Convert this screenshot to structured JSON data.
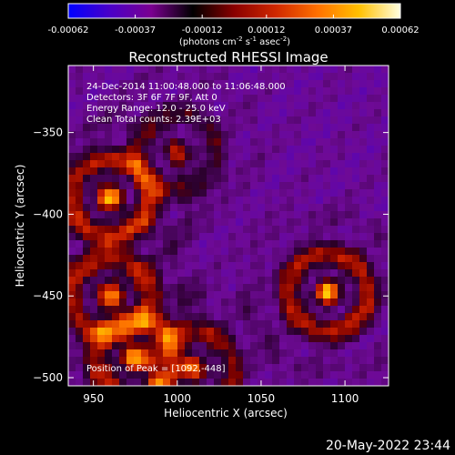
{
  "colorbar": {
    "tick_labels": [
      "-0.00062",
      "-0.00037",
      "-0.00012",
      "0.00012",
      "0.00037",
      "0.00062"
    ],
    "tick_values": [
      -0.00062,
      -0.00037,
      -0.00012,
      0.00012,
      0.00037,
      0.00062
    ],
    "range": [
      -0.00062,
      0.00062
    ],
    "unit_parts": {
      "pre": "(photons cm",
      "exp1": "-2",
      "mid1": " s",
      "exp2": "-1",
      "mid2": " asec",
      "exp3": "-2",
      "post": ")"
    },
    "colors": [
      "#0000ff",
      "#4a00c8",
      "#7a0090",
      "#000000",
      "#8a0000",
      "#d02800",
      "#ff7000",
      "#ffc000",
      "#ffffe0"
    ]
  },
  "chart_data": {
    "type": "heatmap",
    "title": "Reconstructed RHESSI Image",
    "xlabel": "Heliocentric X (arcsec)",
    "ylabel": "Heliocentric Y (arcsec)",
    "xlim": [
      935,
      1126
    ],
    "ylim": [
      -505,
      -309
    ],
    "x_ticks": [
      950,
      1000,
      1050,
      1100
    ],
    "x_tick_labels": [
      "950",
      "1000",
      "1050",
      "1100"
    ],
    "y_ticks": [
      -500,
      -450,
      -400,
      -350
    ],
    "y_tick_labels": [
      "−500",
      "−450",
      "−400",
      "−350"
    ],
    "annotations": [
      "24-Dec-2014 11:00:48.000 to 11:06:48.000",
      "Detectors: 3F 6F 7F 9F, Att 0",
      "Energy Range: 12.0 - 25.0 keV",
      "Clean    Total counts: 2.39E+03"
    ],
    "peak_label": "Position of Peak = [1092,-448]",
    "peak": [
      1092,
      -448
    ],
    "sources": [
      {
        "x": 960,
        "y": -390,
        "strength": 1.0
      },
      {
        "x": 960,
        "y": -450,
        "strength": 0.85
      },
      {
        "x": 975,
        "y": -488,
        "strength": 0.9
      },
      {
        "x": 1010,
        "y": -495,
        "strength": 0.75
      },
      {
        "x": 1090,
        "y": -448,
        "strength": 1.0
      },
      {
        "x": 1000,
        "y": -362,
        "strength": 0.55
      }
    ]
  },
  "footer": {
    "timestamp": "20-May-2022 23:44"
  }
}
